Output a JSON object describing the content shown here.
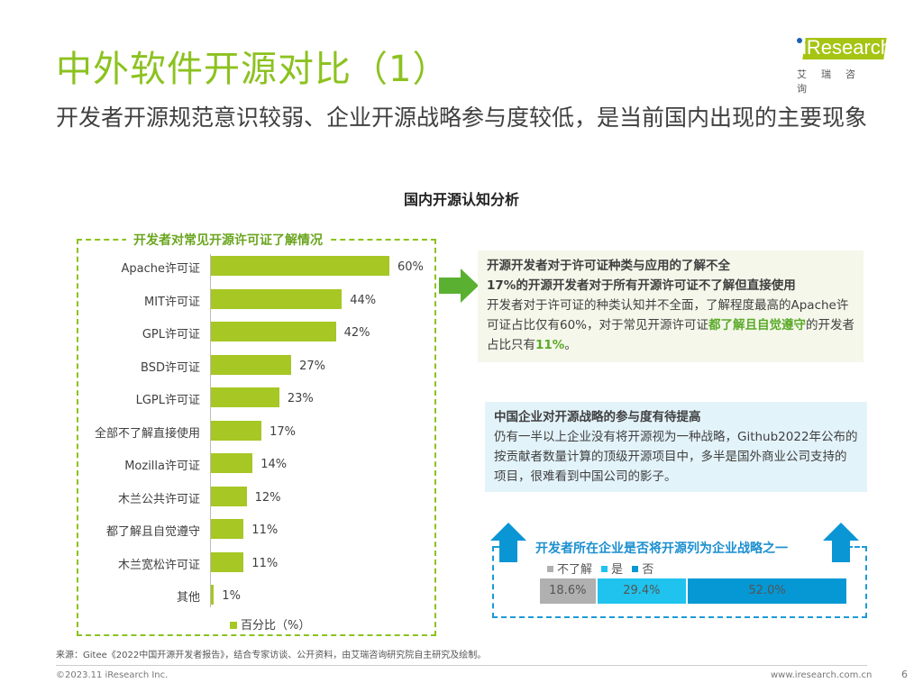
{
  "title": "中外软件开源对比（1）",
  "subtitle": "开发者开源规范意识较弱、企业开源战略参与度较低，是当前国内出现的主要现象",
  "logo": {
    "text": "iResearch",
    "cn": "艾瑞咨询"
  },
  "section_title": "国内开源认知分析",
  "chart_data": [
    {
      "type": "bar",
      "orientation": "horizontal",
      "title": "开发者对常见开源许可证了解情况",
      "categories": [
        "Apache许可证",
        "MIT许可证",
        "GPL许可证",
        "BSD许可证",
        "LGPL许可证",
        "全部不了解直接使用",
        "Mozilla许可证",
        "木兰公共许可证",
        "都了解且自觉遵守",
        "木兰宽松许可证",
        "其他"
      ],
      "values": [
        60,
        44,
        42,
        27,
        23,
        17,
        14,
        12,
        11,
        11,
        1
      ],
      "labels": [
        "60%",
        "44%",
        "42%",
        "27%",
        "23%",
        "17%",
        "14%",
        "12%",
        "11%",
        "11%",
        "1%"
      ],
      "series": [
        {
          "name": "百分比（%）"
        }
      ],
      "legend": "bottom",
      "color": "#a6c724"
    },
    {
      "type": "bar",
      "stacked": true,
      "title": "开发者所在企业是否将开源列为企业战略之一",
      "series": [
        {
          "name": "不了解",
          "value": 18.6,
          "label": "18.6%",
          "color": "#b0b0b0"
        },
        {
          "name": "是",
          "value": 29.4,
          "label": "29.4%",
          "color": "#1fc3ee"
        },
        {
          "name": "否",
          "value": 52.0,
          "label": "52.0%",
          "color": "#0598d4"
        }
      ],
      "legend": "top"
    }
  ],
  "box1": {
    "line1": "开源开发者对于许可证种类与应用的了解不全",
    "line2": "17%的开源开发者对于所有开源许可证不了解但直接使用",
    "body_a": "开发者对于许可证的种类认知并不全面，了解程度最高的Apache许可证占比仅有60%，对于常见开源许可证",
    "body_hl1": "都了解且自觉遵守",
    "body_b": "的开发者占比只有",
    "body_hl2": "11%",
    "body_c": "。"
  },
  "box2": {
    "heading": "中国企业对开源战略的参与度有待提高",
    "body": "仍有一半以上企业没有将开源视为一种战略，Github2022年公布的按贡献者数量计算的顶级开源项目中，多半是国外商业公司支持的项目，很难看到中国公司的影子。"
  },
  "source": "来源：Gitee《2022中国开源开发者报告》，结合专家访谈、公开资料，由艾瑞咨询研究院自主研究及绘制。",
  "copyright": "©2023.11 iResearch Inc.",
  "website": "www.iresearch.com.cn",
  "page": "6"
}
